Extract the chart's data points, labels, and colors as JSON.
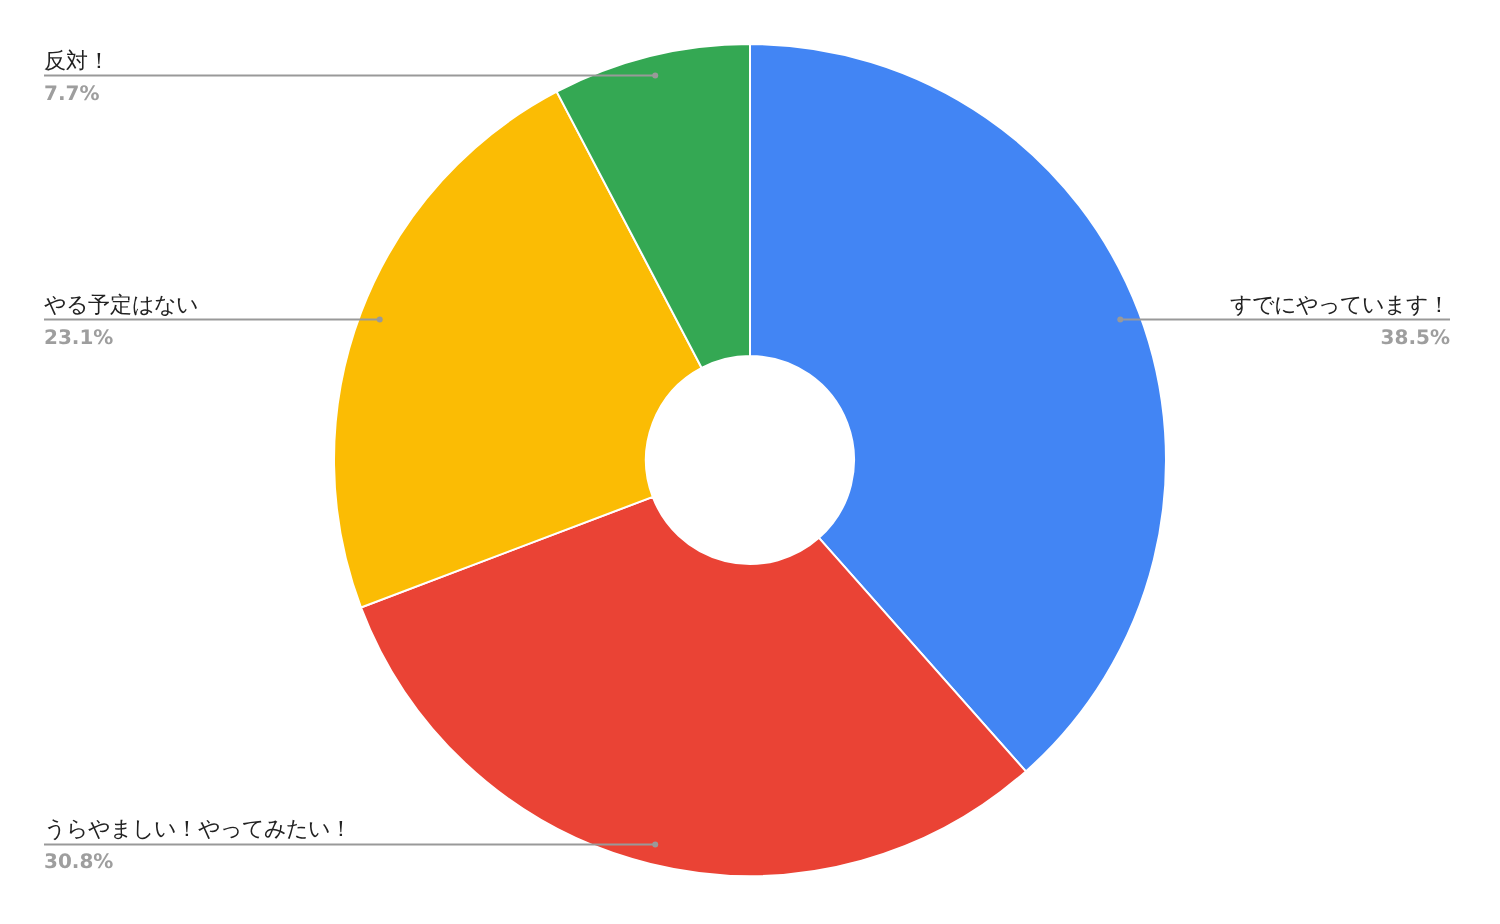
{
  "chart_data": {
    "type": "donut",
    "categories": [
      "すでにやっています！",
      "うらやましい！やってみたい！",
      "やる予定はない",
      "反対！"
    ],
    "values": [
      38.5,
      30.8,
      23.1,
      7.7
    ],
    "colors": [
      "#4285f4",
      "#ea4335",
      "#fbbc04",
      "#34a853"
    ],
    "value_labels": [
      "38.5%",
      "30.8%",
      "23.1%",
      "7.7%"
    ]
  }
}
